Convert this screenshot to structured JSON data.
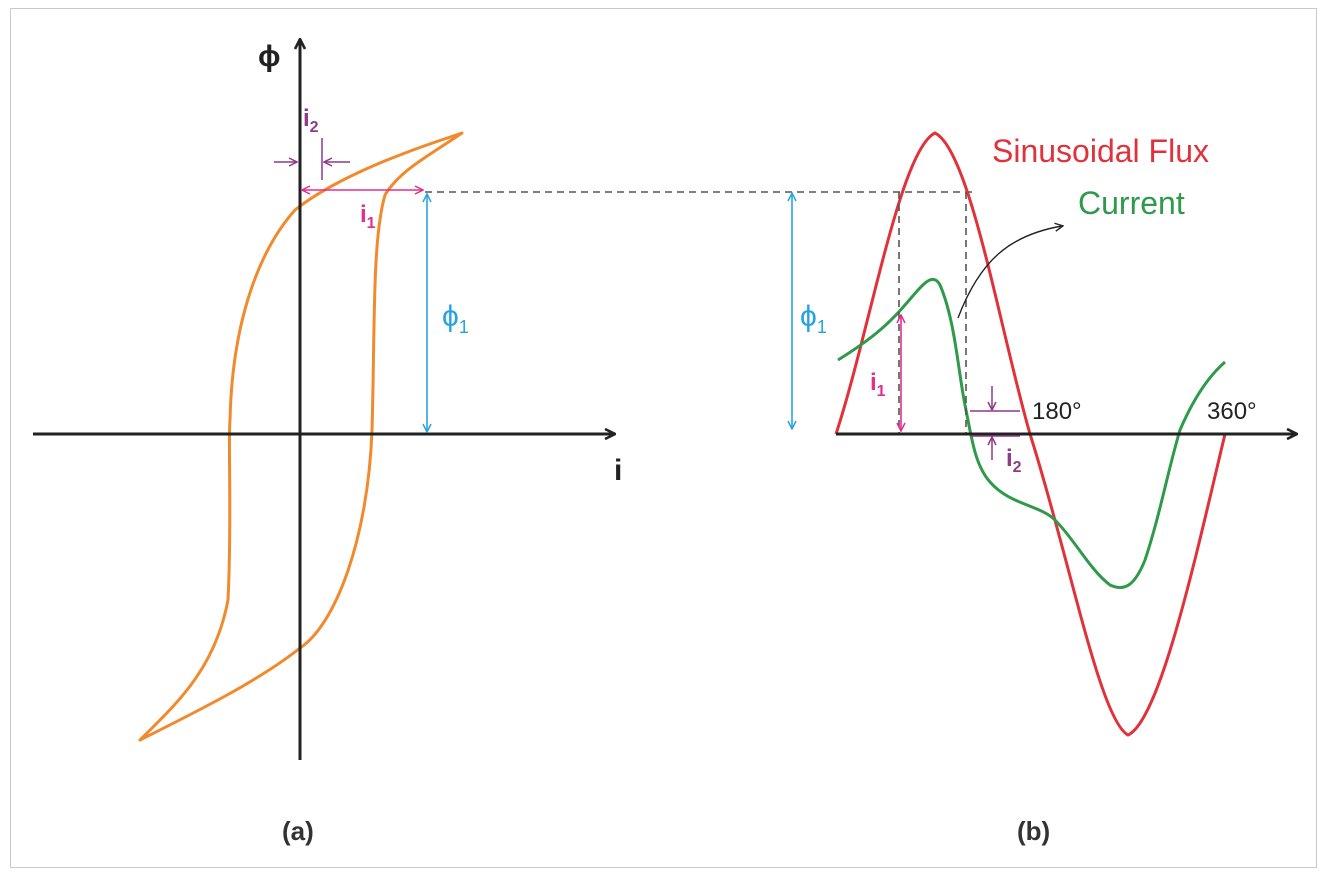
{
  "colors": {
    "axis": "#222222",
    "hysteresis": "#f08a2c",
    "flux": "#e0323a",
    "current": "#2e9a4a",
    "phi_dim": "#29a3e0",
    "i1_dim": "#e0308c",
    "i2_dim": "#8e3a86",
    "dashed": "#555555"
  },
  "panel_a": {
    "caption": "(a)",
    "y_axis_label": "ϕ",
    "x_axis_label": "i",
    "i1": {
      "main": "i",
      "sub": "1"
    },
    "i2": {
      "main": "i",
      "sub": "2"
    },
    "phi1": {
      "main": "ϕ",
      "sub": "1"
    }
  },
  "panel_b": {
    "caption": "(b)",
    "legend_flux": "Sinusoidal Flux",
    "legend_current": "Current",
    "phi1": {
      "main": "ϕ",
      "sub": "1"
    },
    "i1": {
      "main": "i",
      "sub": "1"
    },
    "i2": {
      "main": "i",
      "sub": "2"
    },
    "tick_180": "180°",
    "tick_360": "360°"
  }
}
